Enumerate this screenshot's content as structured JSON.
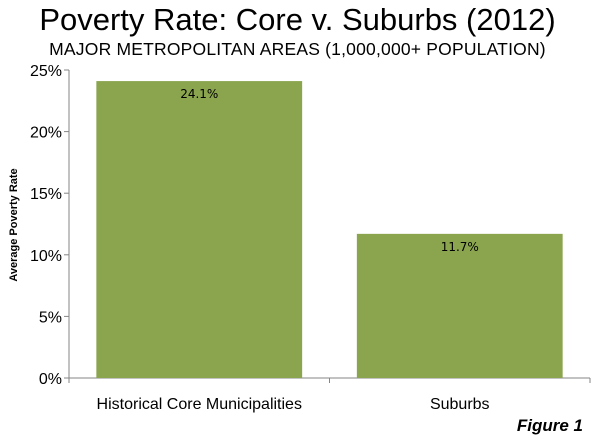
{
  "title": "Poverty Rate: Core v. Suburbs (2012)",
  "subtitle": "MAJOR METROPOLITAN AREAS (1,000,000+ POPULATION)",
  "figure_label": "Figure 1",
  "colors": {
    "bar": "#8aa54e",
    "axis": "#868686"
  },
  "chart_data": {
    "type": "bar",
    "categories": [
      "Historical Core Municipalities",
      "Suburbs"
    ],
    "values": [
      24.1,
      11.7
    ],
    "data_labels": [
      "24.1%",
      "11.7%"
    ],
    "title": "Poverty Rate: Core v. Suburbs (2012)",
    "subtitle": "MAJOR METROPOLITAN AREAS (1,000,000+ POPULATION)",
    "xlabel": "",
    "ylabel": "Average Poverty Rate",
    "ylim": [
      0,
      25
    ],
    "yticks": [
      0,
      5,
      10,
      15,
      20,
      25
    ],
    "ytick_labels": [
      "0%",
      "5%",
      "10%",
      "15%",
      "20%",
      "25%"
    ],
    "grid": false,
    "legend": "none"
  }
}
